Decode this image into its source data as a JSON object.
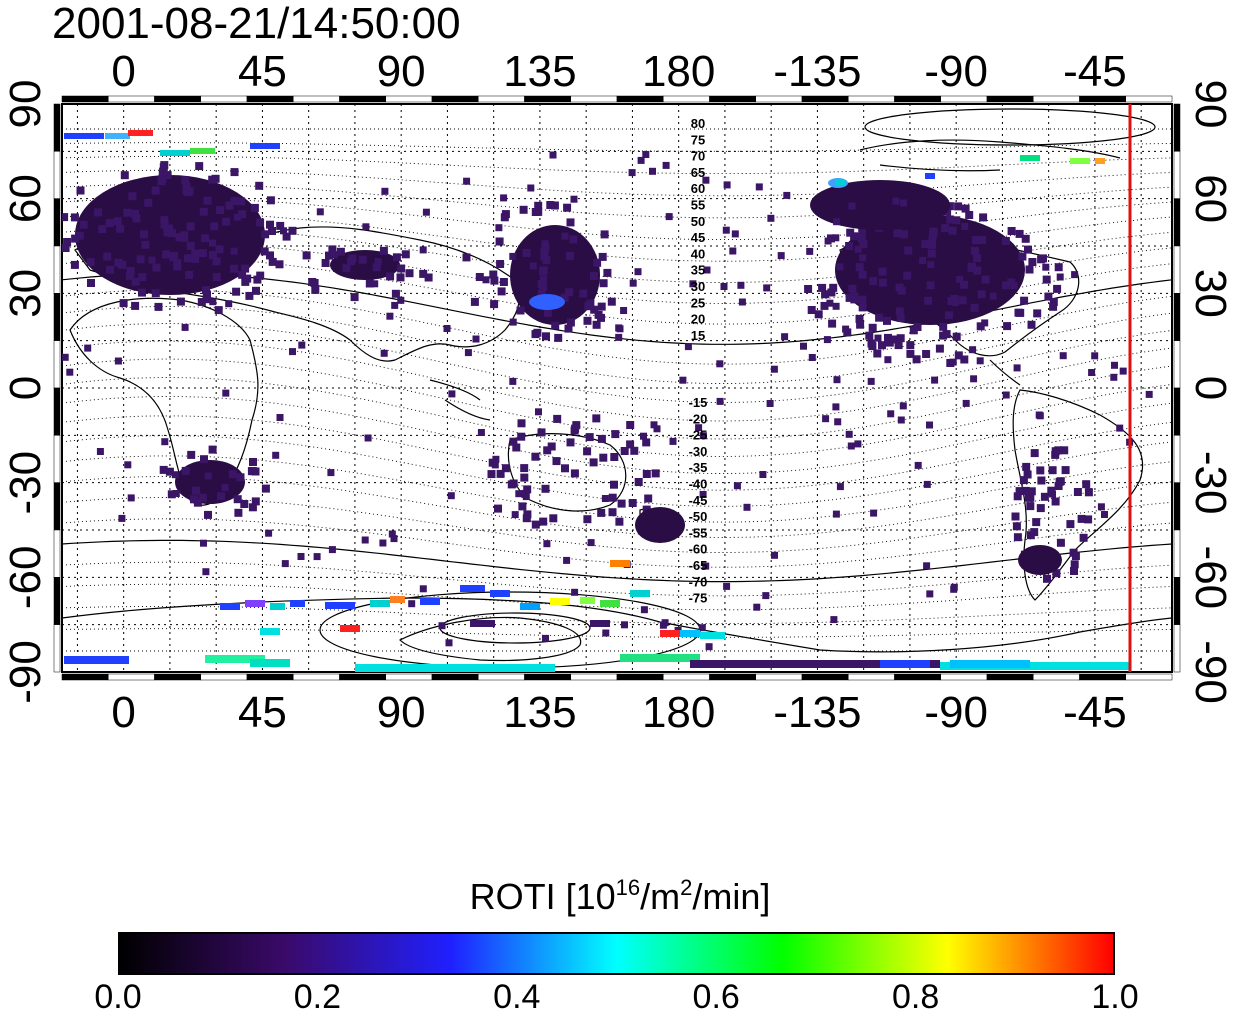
{
  "timestamp": "2001-08-21/14:50:00",
  "map": {
    "lon_ticks_top": [
      "0",
      "45",
      "90",
      "135",
      "180",
      "-135",
      "-90",
      "-45"
    ],
    "lon_ticks_bottom": [
      "0",
      "45",
      "90",
      "135",
      "180",
      "-135",
      "-90",
      "-45"
    ],
    "lat_ticks_left": [
      "90",
      "60",
      "30",
      "0",
      "-30",
      "-60",
      "-90"
    ],
    "lat_ticks_right": [
      "90",
      "60",
      "30",
      "0",
      "-30",
      "-60",
      "-90"
    ],
    "lon_range": [
      -20,
      340
    ],
    "lat_range": [
      -90,
      90
    ],
    "terminator_longitude": -46,
    "terminator_color": "#e01010",
    "grid": "dotted",
    "contour_labels_north": [
      "80",
      "75",
      "70",
      "65",
      "60",
      "55",
      "50",
      "45",
      "40",
      "35",
      "30",
      "25",
      "20",
      "15"
    ],
    "contour_labels_south": [
      "-15",
      "-20",
      "-25",
      "-30",
      "-35",
      "-40",
      "-45",
      "-50",
      "-55",
      "-60",
      "-65",
      "-70",
      "-75"
    ]
  },
  "colorbar": {
    "title_text": "ROTI  [10",
    "title_exp1": "16",
    "title_mid": "/m",
    "title_exp2": "2",
    "title_end": "/min]",
    "ticks": [
      "0.0",
      "0.2",
      "0.4",
      "0.6",
      "0.8",
      "1.0"
    ],
    "range": [
      0.0,
      1.0
    ],
    "colormap": [
      "#000000",
      "#3a0a6a",
      "#2020ff",
      "#00ffff",
      "#00ff00",
      "#ffff00",
      "#ff0000"
    ]
  }
}
